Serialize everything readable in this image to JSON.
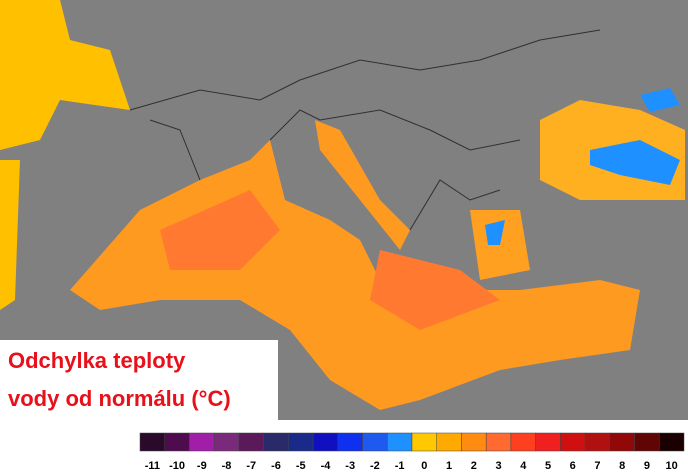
{
  "title_lines": [
    "Odchylka teploty",
    "vody od normálu (°C)"
  ],
  "legend": {
    "ticks": [
      -11,
      -10,
      -9,
      -8,
      -7,
      -6,
      -5,
      -4,
      -3,
      -2,
      -1,
      0,
      1,
      2,
      3,
      4,
      5,
      6,
      7,
      8,
      9,
      10
    ],
    "colors": [
      "#2a0a2a",
      "#4e0c4e",
      "#a01ea8",
      "#7a2a7a",
      "#5a1a5a",
      "#2a2a6a",
      "#1a2a8a",
      "#1010c0",
      "#1030f0",
      "#1e5af0",
      "#1e90ff",
      "#ffc800",
      "#ffaa00",
      "#ff8c10",
      "#ff6a30",
      "#ff4020",
      "#f02020",
      "#d01010",
      "#b01010",
      "#900808",
      "#600404",
      "#1a0000"
    ]
  }
}
